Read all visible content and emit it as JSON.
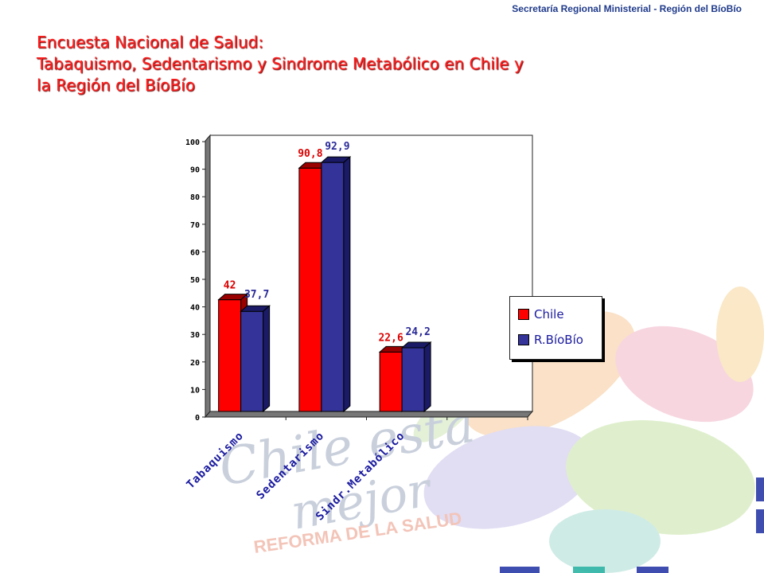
{
  "header": {
    "org": "Secretaría Regional Ministerial - Región del BíoBío"
  },
  "title": {
    "line1": "Encuesta Nacional de Salud:",
    "line2": "Tabaquismo, Sedentarismo y  Sindrome Metabólico en Chile y",
    "line3": "la Región del BíoBío"
  },
  "watermark": {
    "slogan_line1": "Chile está",
    "slogan_line2": "mejor",
    "reform": "REFORMA DE    LA SALUD"
  },
  "colors": {
    "chile": "#ff0000",
    "biobio": "#333399",
    "label_chile": "#dd0000",
    "label_biobio": "#2a2a99"
  },
  "chart_data": {
    "type": "bar",
    "categories": [
      "Tabaquismo",
      "Sedentarismo",
      "Sindr.Metabólico"
    ],
    "series": [
      {
        "name": "Chile",
        "values": [
          42,
          90.8,
          22.6
        ],
        "labels": [
          "42",
          "90,8",
          "22,6"
        ]
      },
      {
        "name": "R.BíoBío",
        "values": [
          37.7,
          92.9,
          24.2
        ],
        "labels": [
          "37,7",
          "92,9",
          "24,2"
        ]
      }
    ],
    "yticks": [
      "0",
      "10",
      "20",
      "30",
      "40",
      "50",
      "60",
      "70",
      "80",
      "90",
      "100"
    ],
    "ylim": [
      0,
      100
    ],
    "grid": false,
    "legend": "right",
    "style": "3d"
  }
}
